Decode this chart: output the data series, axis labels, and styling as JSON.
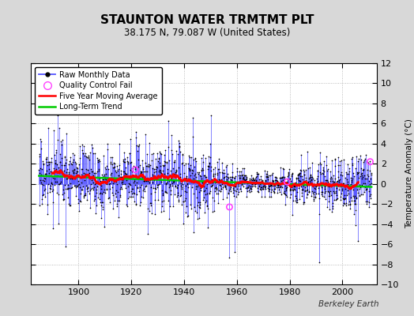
{
  "title": "STAUNTON WATER TRMTMT PLT",
  "subtitle": "38.175 N, 79.087 W (United States)",
  "ylabel": "Temperature Anomaly (°C)",
  "ylim": [
    -10,
    12
  ],
  "xlim": [
    1882,
    2013
  ],
  "yticks": [
    -10,
    -8,
    -6,
    -4,
    -2,
    0,
    2,
    4,
    6,
    8,
    10,
    12
  ],
  "xticks": [
    1900,
    1920,
    1940,
    1960,
    1980,
    2000
  ],
  "fig_bg_color": "#d8d8d8",
  "plot_bg_color": "#ffffff",
  "raw_line_color": "#5555ff",
  "raw_dot_color": "#000000",
  "ma_color": "#ff0000",
  "trend_color": "#00cc00",
  "qc_color": "#ff44ff",
  "seed": 17,
  "start_year": 1885,
  "end_year": 2011,
  "credit": "Berkeley Earth"
}
